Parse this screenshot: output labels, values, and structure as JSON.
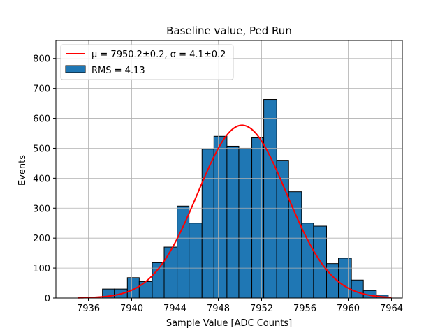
{
  "chart_data": {
    "type": "bar",
    "title": "Baseline value, Ped Run",
    "xlabel": "Sample Value [ADC Counts]",
    "ylabel": "Events",
    "xlim": [
      7933,
      7965
    ],
    "ylim": [
      0,
      860
    ],
    "xticks": [
      7936,
      7940,
      7944,
      7948,
      7952,
      7956,
      7960,
      7964
    ],
    "yticks": [
      0,
      100,
      200,
      300,
      400,
      500,
      600,
      700,
      800
    ],
    "grid": true,
    "legend_position": "top-left",
    "histogram": {
      "name": "RMS = 4.13",
      "color": "#1f77b4",
      "edge_color": "#000000",
      "bin_edges": [
        7935.0,
        7936.1,
        7937.3,
        7938.4,
        7939.6,
        7940.7,
        7941.9,
        7943.0,
        7944.2,
        7945.3,
        7946.5,
        7947.6,
        7948.8,
        7949.9,
        7951.1,
        7952.2,
        7953.4,
        7954.5,
        7955.7,
        7956.8,
        7958.0,
        7959.1,
        7960.3,
        7961.4,
        7962.6,
        7963.7
      ],
      "counts": [
        0,
        0,
        30,
        30,
        68,
        55,
        118,
        170,
        307,
        250,
        497,
        540,
        507,
        500,
        535,
        663,
        460,
        355,
        250,
        240,
        115,
        133,
        60,
        25,
        10
      ]
    },
    "fit": {
      "name": "$\\mu = 7950.2 \\pm 0.2$, $\\sigma = 4.1 \\pm 0.2$",
      "label_mu": "μ = 7950.2±0.2, σ = 4.1±0.2",
      "type": "gaussian",
      "mu": 7950.2,
      "sigma": 4.1,
      "amplitude": 577,
      "x_range": [
        7935,
        7964
      ],
      "color": "#ff0000"
    },
    "legend": [
      "μ = 7950.2±0.2, σ = 4.1±0.2",
      "RMS = 4.13"
    ]
  }
}
